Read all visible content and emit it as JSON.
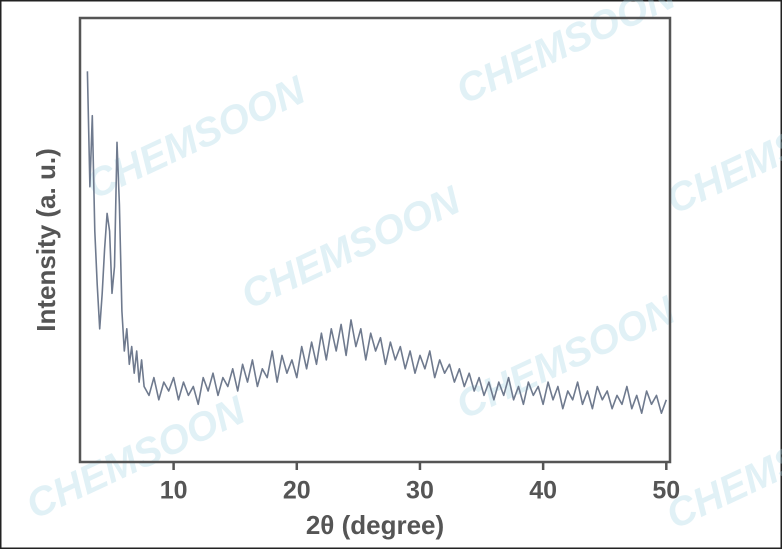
{
  "chart_data": {
    "type": "line",
    "x_label": "2θ (degree)",
    "y_label": "Intensity (a. u.)",
    "xlim": [
      2.4,
      50.3
    ],
    "ylim": [
      0,
      100
    ],
    "xticks": [
      10,
      20,
      30,
      40,
      50
    ],
    "color": "#6f7a8e",
    "x": [
      3.0,
      3.2,
      3.4,
      3.6,
      3.8,
      4.0,
      4.2,
      4.4,
      4.6,
      4.8,
      5.0,
      5.2,
      5.4,
      5.6,
      5.8,
      6.0,
      6.2,
      6.4,
      6.6,
      6.8,
      7.0,
      7.2,
      7.4,
      7.6,
      8.0,
      8.4,
      8.8,
      9.2,
      9.6,
      10.0,
      10.4,
      10.8,
      11.2,
      11.6,
      12.0,
      12.4,
      12.8,
      13.2,
      13.6,
      14.0,
      14.4,
      14.8,
      15.2,
      15.6,
      16.0,
      16.4,
      16.8,
      17.2,
      17.6,
      18.0,
      18.4,
      18.8,
      19.2,
      19.6,
      20.0,
      20.4,
      20.8,
      21.2,
      21.6,
      22.0,
      22.4,
      22.8,
      23.2,
      23.6,
      24.0,
      24.4,
      24.8,
      25.2,
      25.6,
      26.0,
      26.4,
      26.8,
      27.2,
      27.6,
      28.0,
      28.4,
      28.8,
      29.2,
      29.6,
      30.0,
      30.4,
      30.8,
      31.2,
      31.6,
      32.0,
      32.4,
      32.8,
      33.2,
      33.6,
      34.0,
      34.4,
      34.8,
      35.2,
      35.6,
      36.0,
      36.4,
      36.8,
      37.2,
      37.6,
      38.0,
      38.4,
      38.8,
      39.2,
      39.6,
      40.0,
      40.4,
      40.8,
      41.2,
      41.6,
      42.0,
      42.4,
      42.8,
      43.2,
      43.6,
      44.0,
      44.4,
      44.8,
      45.2,
      45.6,
      46.0,
      46.4,
      46.8,
      47.2,
      47.6,
      48.0,
      48.4,
      48.8,
      49.2,
      49.6,
      50.0
    ],
    "values": [
      88,
      62,
      78,
      52,
      40,
      30,
      38,
      48,
      56,
      52,
      38,
      44,
      72,
      58,
      34,
      25,
      30,
      22,
      26,
      20,
      25,
      18,
      23,
      17,
      15,
      19,
      14,
      18,
      16,
      19,
      14,
      18,
      15,
      17,
      13,
      19,
      16,
      20,
      15,
      19,
      17,
      21,
      16,
      22,
      18,
      23,
      17,
      21,
      19,
      25,
      18,
      24,
      20,
      23,
      19,
      26,
      21,
      27,
      22,
      29,
      23,
      30,
      25,
      31,
      24,
      32,
      26,
      30,
      23,
      29,
      25,
      28,
      22,
      27,
      23,
      26,
      21,
      25,
      20,
      24,
      21,
      25,
      19,
      23,
      20,
      22,
      18,
      21,
      17,
      20,
      16,
      19,
      15,
      18,
      14,
      18,
      15,
      19,
      14,
      17,
      13,
      18,
      15,
      17,
      13,
      18,
      14,
      17,
      12,
      16,
      14,
      18,
      13,
      16,
      12,
      17,
      14,
      16,
      12,
      15,
      13,
      17,
      12,
      15,
      11,
      16,
      13,
      15,
      11,
      14
    ]
  },
  "watermark": "CHEMSOON"
}
